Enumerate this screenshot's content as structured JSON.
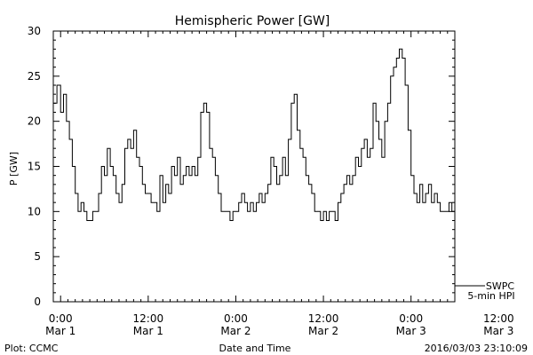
{
  "footer": {
    "left": "Plot: CCMC",
    "right": "2016/03/03 23:10:09"
  },
  "chart_data": {
    "type": "line",
    "title": "Hemispheric Power [GW]",
    "xlabel": "Date and Time",
    "ylabel": "P [GW]",
    "ylim": [
      0,
      30
    ],
    "y_ticks": [
      0,
      5,
      10,
      15,
      20,
      25,
      30
    ],
    "x_unit": "hours since Mar 1 00:00",
    "xlim": [
      -1,
      54
    ],
    "x_ticks": [
      {
        "x": 0,
        "time": "0:00",
        "date": "Mar 1"
      },
      {
        "x": 12,
        "time": "12:00",
        "date": "Mar 1"
      },
      {
        "x": 24,
        "time": "0:00",
        "date": "Mar 2"
      },
      {
        "x": 36,
        "time": "12:00",
        "date": "Mar 2"
      },
      {
        "x": 48,
        "time": "0:00",
        "date": "Mar 3"
      },
      {
        "x": 60,
        "time": "12:00",
        "date": "Mar 3"
      }
    ],
    "grid": false,
    "legend_position": "bottom-right",
    "series": [
      {
        "name": "SWPC 5-min HPI",
        "color": "#000000",
        "x": [
          -1,
          -0.5,
          0,
          0.4,
          0.8,
          1.2,
          1.6,
          2.0,
          2.4,
          2.8,
          3.2,
          3.6,
          4.0,
          4.4,
          4.8,
          5.2,
          5.6,
          6.0,
          6.4,
          6.8,
          7.2,
          7.6,
          8.0,
          8.4,
          8.8,
          9.2,
          9.6,
          10.0,
          10.4,
          10.8,
          11.2,
          11.6,
          12.0,
          12.4,
          12.8,
          13.2,
          13.6,
          14.0,
          14.4,
          14.8,
          15.2,
          15.6,
          16.0,
          16.4,
          16.8,
          17.2,
          17.6,
          18.0,
          18.4,
          18.8,
          19.2,
          19.6,
          20.0,
          20.4,
          20.8,
          21.2,
          21.6,
          22.0,
          22.4,
          22.8,
          23.2,
          23.6,
          24.0,
          24.4,
          24.8,
          25.2,
          25.6,
          26.0,
          26.4,
          26.8,
          27.2,
          27.6,
          28.0,
          28.4,
          28.8,
          29.2,
          29.6,
          30.0,
          30.4,
          30.8,
          31.2,
          31.6,
          32.0,
          32.4,
          32.8,
          33.2,
          33.6,
          34.0,
          34.4,
          34.8,
          35.2,
          35.6,
          36.0,
          36.4,
          36.8,
          37.2,
          37.6,
          38.0,
          38.4,
          38.8,
          39.2,
          39.6,
          40.0,
          40.4,
          40.8,
          41.2,
          41.6,
          42.0,
          42.4,
          42.8,
          43.2,
          43.6,
          44.0,
          44.4,
          44.8,
          45.2,
          45.6,
          46.0,
          46.4,
          46.8,
          47.2,
          47.6,
          48.0,
          48.4,
          48.8,
          49.2,
          49.6,
          50.0,
          50.4,
          50.8,
          51.2,
          51.6,
          52.0,
          52.4,
          52.8,
          53.2,
          53.6,
          54.0
        ],
        "y": [
          22,
          24,
          21,
          23,
          20,
          18,
          15,
          12,
          10,
          11,
          10,
          9,
          9,
          10,
          10,
          12,
          15,
          14,
          17,
          15,
          14,
          12,
          11,
          13,
          17,
          18,
          17,
          19,
          16,
          15,
          13,
          12,
          12,
          11,
          11,
          10,
          14,
          11,
          13,
          12,
          15,
          14,
          16,
          13,
          14,
          15,
          14,
          15,
          14,
          16,
          21,
          22,
          21,
          17,
          16,
          14,
          12,
          10,
          10,
          10,
          9,
          10,
          10,
          11,
          12,
          11,
          10,
          11,
          10,
          11,
          12,
          11,
          12,
          13,
          16,
          15,
          13,
          14,
          16,
          14,
          18,
          22,
          23,
          19,
          17,
          16,
          14,
          13,
          12,
          10,
          10,
          9,
          10,
          9,
          10,
          10,
          9,
          11,
          12,
          13,
          14,
          13,
          14,
          16,
          15,
          17,
          18,
          16,
          17,
          22,
          20,
          18,
          16,
          20,
          22,
          25,
          26,
          27,
          28,
          27,
          24,
          19,
          14,
          12,
          11,
          13,
          11,
          12,
          13,
          11,
          12,
          11,
          10,
          10,
          10,
          11,
          10,
          9
        ]
      }
    ]
  }
}
